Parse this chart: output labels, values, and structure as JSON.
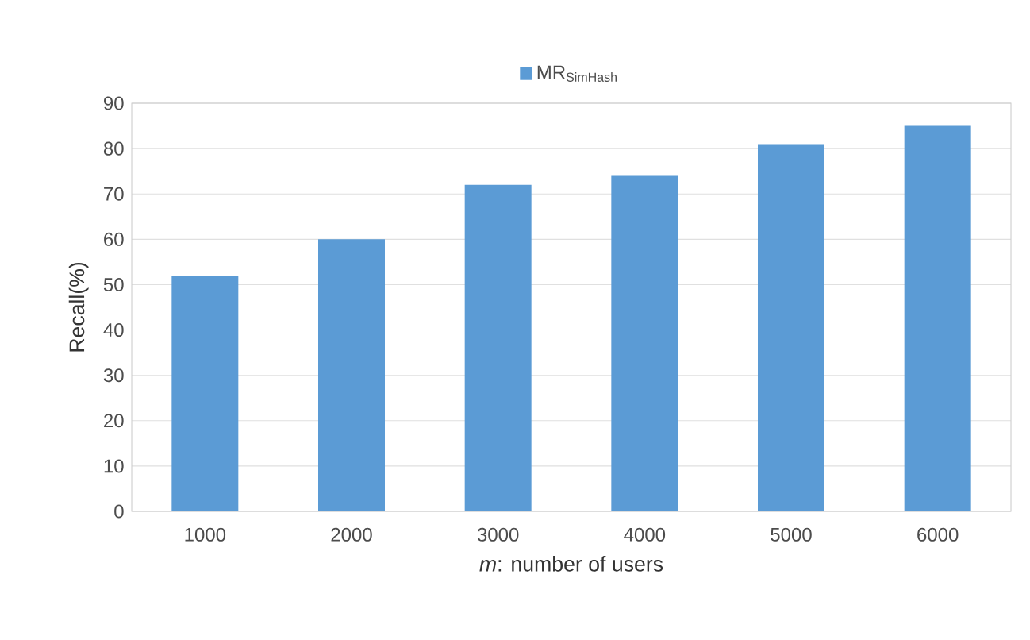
{
  "chart_data": {
    "type": "bar",
    "xlabel": "*m*: number of users",
    "ylabel": "Recall(%)",
    "categories": [
      "1000",
      "2000",
      "3000",
      "4000",
      "5000",
      "6000"
    ],
    "series": [
      {
        "name": "MR$_{SimHash}$",
        "color": "#5b9bd5",
        "values": [
          52,
          60,
          72,
          74,
          81,
          85
        ]
      }
    ],
    "ylim": [
      0,
      90
    ],
    "yticks": [
      0,
      10,
      20,
      30,
      40,
      50,
      60,
      70,
      80,
      90
    ],
    "grid": "y",
    "legend": "top"
  }
}
